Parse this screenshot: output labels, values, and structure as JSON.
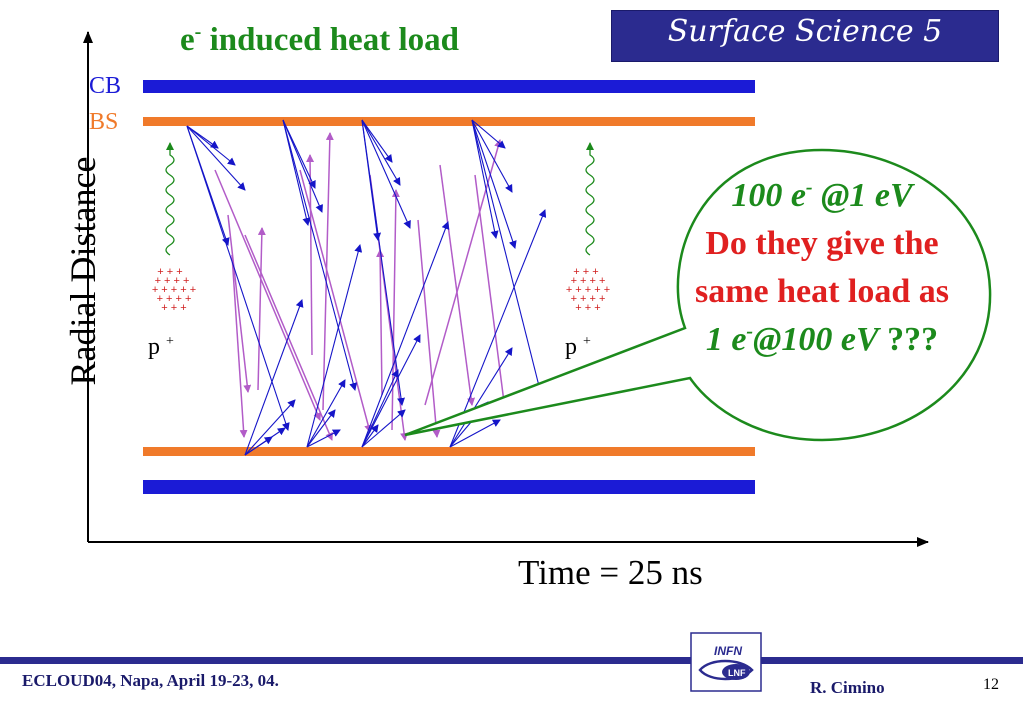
{
  "slide": {
    "title_main": "e",
    "title_sup": "-",
    "title_rest": " induced  heat load",
    "topic": "Surface Science 5",
    "y_axis_label": "Radial Distance",
    "x_axis_label": "Time = 25 ns",
    "label_cb": "CB",
    "label_bs": "BS",
    "proton_base": "p",
    "proton_sup": "+"
  },
  "bubble": {
    "line1_a": "100 e",
    "line1_sup": "-",
    "line1_b": " @1 eV",
    "line2": "Do they give the",
    "line3": "same heat load as",
    "line4_a": "1 e",
    "line4_sup": "-",
    "line4_b": "@100 eV",
    "line4_c": " ???"
  },
  "footer": {
    "conference": "ECLOUD04, Napa, April 19-23, 04.",
    "author": "R. Cimino",
    "page": "12",
    "logo_top": "INFN",
    "logo_bottom": "LNF"
  },
  "colors": {
    "cb": "#1b1bd6",
    "bs": "#f07a2a",
    "electron_arrow": "#1515c8",
    "reflected_arrow": "#b25cc8",
    "photon": "#1c8a1c",
    "proton": "#d02020",
    "title": "#1c8a1c",
    "banner": "#2b2b8f",
    "footer_line": "#2b2b8f"
  }
}
